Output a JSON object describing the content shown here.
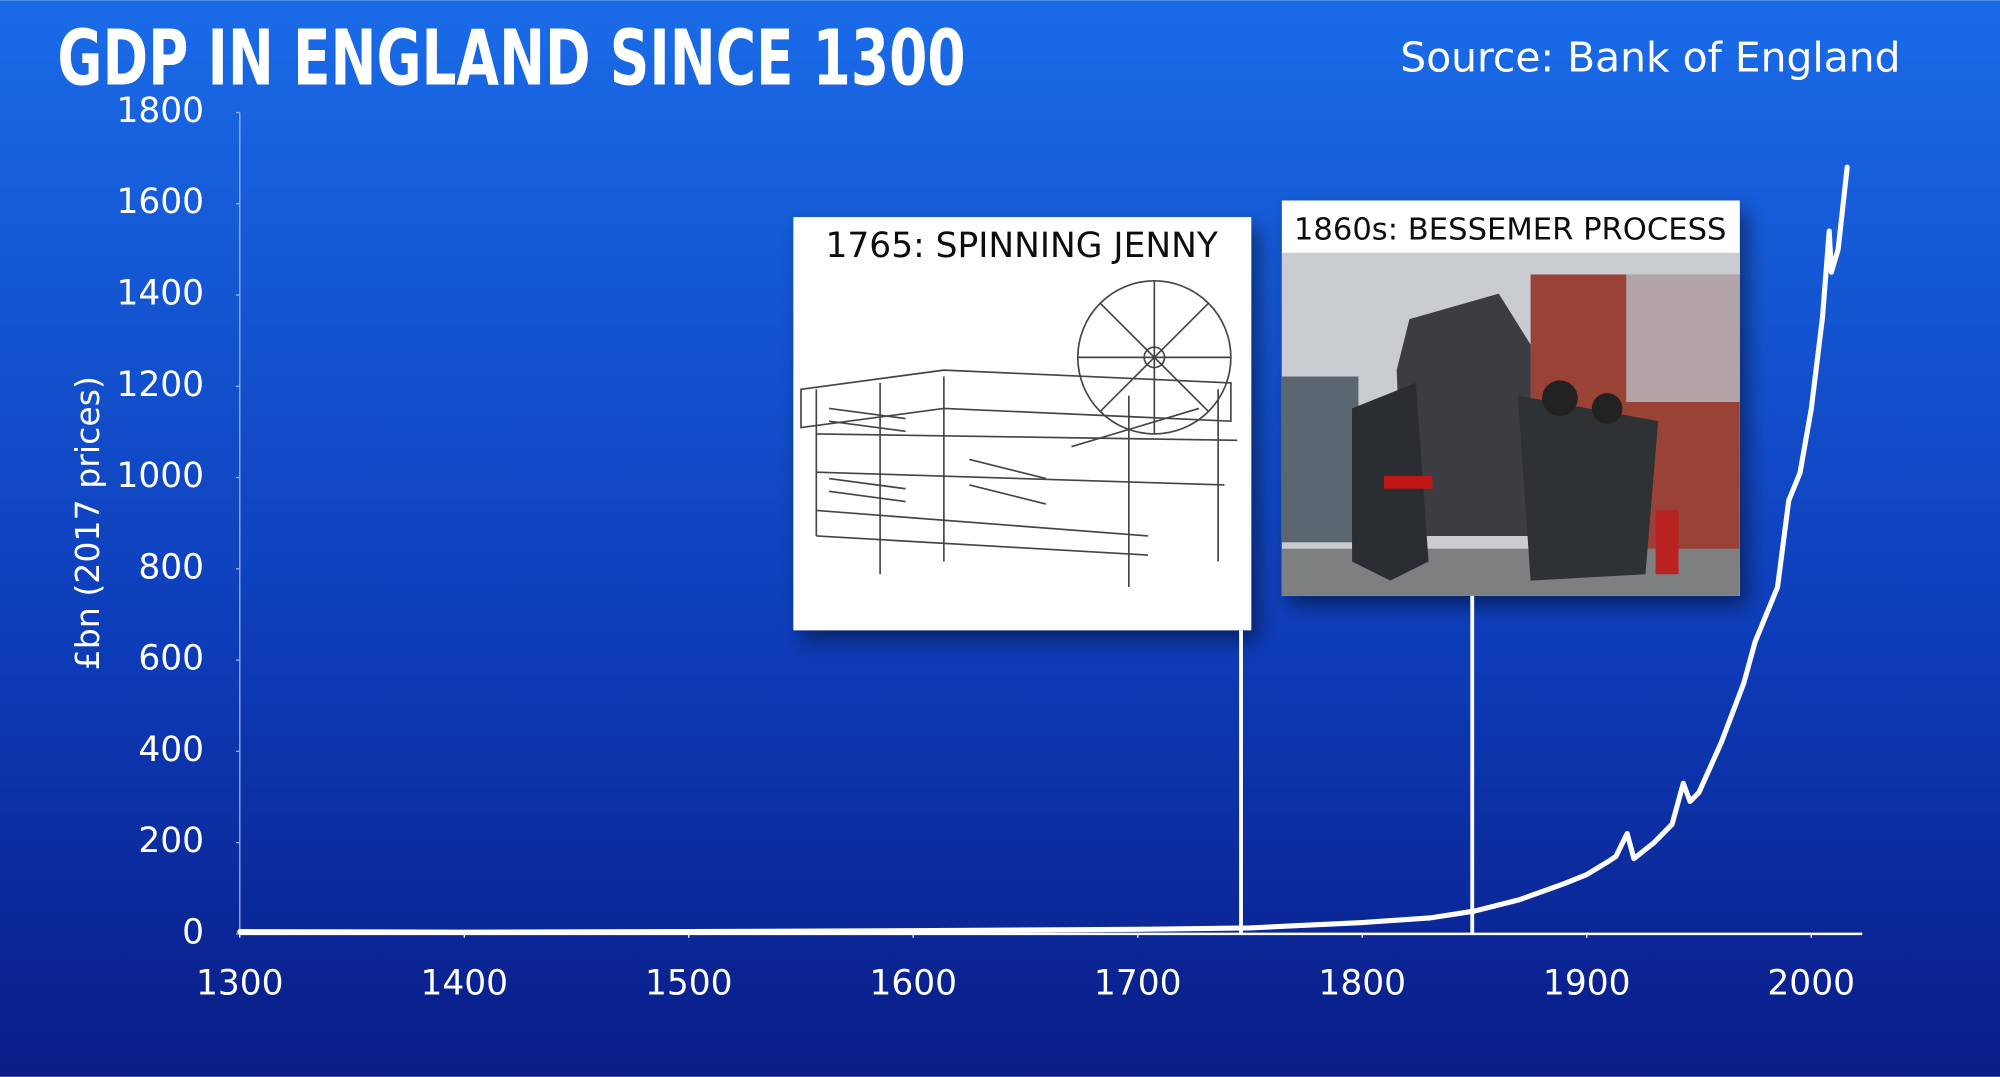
{
  "chart_data": {
    "type": "line",
    "title": "GDP IN ENGLAND SINCE 1300",
    "subtitle": "Source: Bank of England",
    "y_label": "£bn (2017 prices)",
    "x": [
      1300,
      1400,
      1500,
      1600,
      1700,
      1750,
      1800,
      1830,
      1850,
      1870,
      1890,
      1900,
      1910,
      1913,
      1918,
      1921,
      1930,
      1938,
      1943,
      1946,
      1950,
      1960,
      1970,
      1975,
      1980,
      1985,
      1990,
      1995,
      2000,
      2005,
      2008,
      2009,
      2012,
      2016
    ],
    "values": [
      5,
      4,
      5,
      7,
      10,
      13,
      25,
      35,
      50,
      75,
      110,
      130,
      160,
      170,
      220,
      165,
      200,
      240,
      330,
      290,
      310,
      420,
      550,
      640,
      700,
      760,
      950,
      1010,
      1150,
      1350,
      1540,
      1450,
      1500,
      1680
    ],
    "color": "#ffffff",
    "xlim": [
      1300,
      2000
    ],
    "xticks": [
      1300,
      1400,
      1500,
      1600,
      1700,
      1800,
      1900,
      2000
    ],
    "ylim": [
      0,
      1800
    ],
    "yticks": [
      0,
      200,
      400,
      600,
      800,
      1000,
      1200,
      1400,
      1600,
      1800
    ],
    "grid": false,
    "annotations": [
      {
        "text": "1765: SPINNING JENNY",
        "x": 1746
      },
      {
        "text": "1860s: BESSEMER PROCESS",
        "x": 1849
      }
    ]
  }
}
